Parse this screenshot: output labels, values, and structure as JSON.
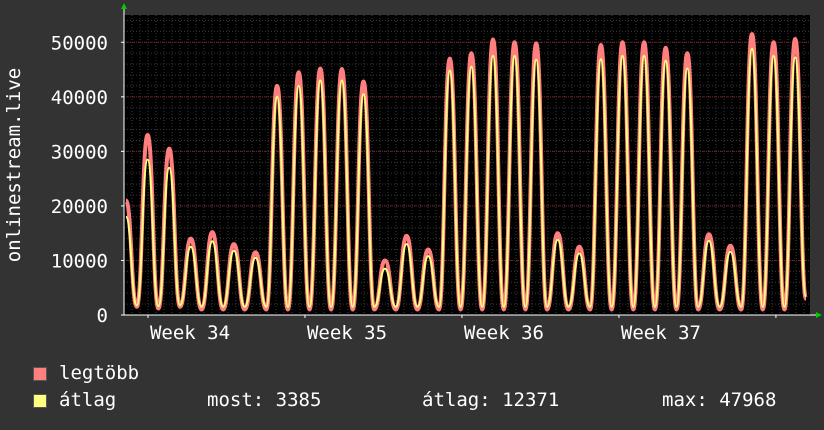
{
  "chart_data": {
    "type": "area",
    "ylabel": "onlinestream.live",
    "ylim": [
      0,
      55000
    ],
    "yticks": [
      0,
      10000,
      20000,
      30000,
      40000,
      50000
    ],
    "xticks": [
      "Week 34",
      "Week 35",
      "Week 36",
      "Week 37"
    ],
    "grid": true,
    "colors": {
      "background": "#000000",
      "canvas": "#333333",
      "grid_minor": "#3a3a3a",
      "grid_major": "#7a2020",
      "max": "#ff7f7f",
      "avg": "#ffff80"
    },
    "series": [
      {
        "name": "legtöbb",
        "color": "#ff7f7f",
        "values": [
          21000,
          1500,
          33000,
          1200,
          30500,
          1500,
          14000,
          1000,
          15200,
          1000,
          13000,
          1000,
          11500,
          1000,
          42000,
          1000,
          44500,
          1000,
          45200,
          1000,
          45100,
          1000,
          42800,
          1000,
          10000,
          1000,
          14500,
          1000,
          12000,
          1000,
          47000,
          1000,
          48000,
          1000,
          50500,
          1000,
          50000,
          1000,
          49800,
          1000,
          15000,
          1000,
          12500,
          1000,
          49500,
          1000,
          50000,
          1000,
          50000,
          1000,
          49000,
          1000,
          48000,
          1000,
          14800,
          1000,
          12700,
          1000,
          51500,
          1000,
          50000,
          1000,
          50600,
          3000
        ]
      },
      {
        "name": "átlag",
        "color": "#ffff80",
        "values": [
          18000,
          1800,
          28500,
          1600,
          27000,
          1800,
          12500,
          1500,
          13500,
          1500,
          11800,
          1500,
          10500,
          1500,
          40000,
          1500,
          42000,
          1500,
          43000,
          1500,
          43000,
          1500,
          40500,
          1500,
          8500,
          1500,
          13000,
          1500,
          10800,
          1500,
          44800,
          1500,
          45500,
          1500,
          47500,
          1500,
          47500,
          1500,
          46800,
          1500,
          13800,
          1500,
          11300,
          1500,
          46900,
          1500,
          47500,
          1500,
          47500,
          1500,
          46600,
          1500,
          45200,
          1500,
          13600,
          1500,
          11600,
          1500,
          48800,
          1500,
          47500,
          1500,
          47200,
          3385
        ]
      }
    ]
  },
  "legend": {
    "max_label": "legtöbb",
    "avg_label": "átlag",
    "now_text": "most: 3385",
    "avg_text": "átlag: 12371",
    "max_text": "max: 47968"
  }
}
